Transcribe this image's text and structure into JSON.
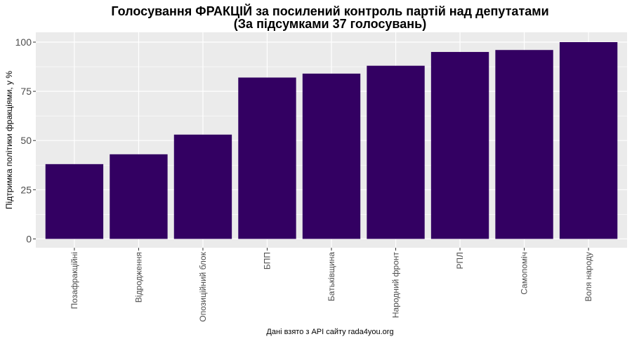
{
  "chart_data": {
    "type": "bar",
    "title": "Голосування ФРАКЦІЙ за посилений контроль партій над депутатами",
    "subtitle": "(За підсумками 37 голосувань)",
    "xlabel": "Дані взято з API сайту rada4you.org",
    "ylabel": "Підтримка політики фракціями, у %",
    "categories": [
      "Позафракційні",
      "Відродження",
      "Опозиційний блок",
      "БПП",
      "Батьківщина",
      "Народний фронт",
      "РПЛ",
      "Самопоміч",
      "Воля народу"
    ],
    "values": [
      38,
      43,
      53,
      82,
      84,
      88,
      95,
      96,
      100
    ],
    "yticks": [
      0,
      25,
      50,
      75,
      100
    ],
    "ylim": [
      -4.5,
      105
    ],
    "bar_color": "#330062",
    "panel_color": "#ebebeb",
    "grid": true,
    "legend": "none"
  }
}
